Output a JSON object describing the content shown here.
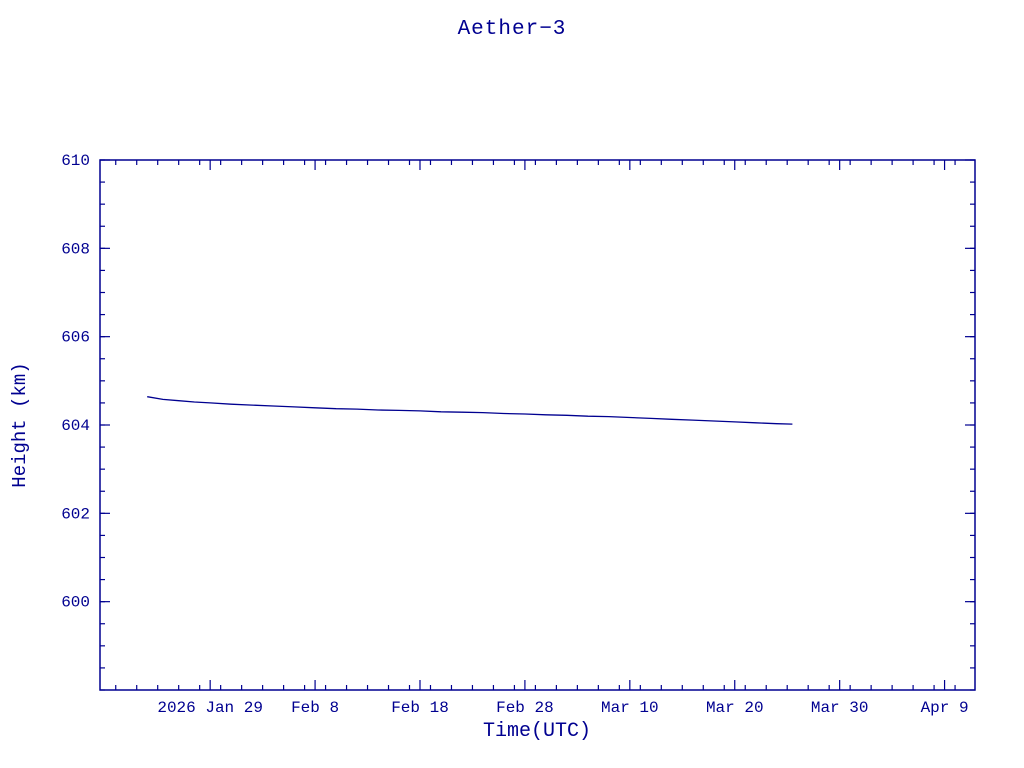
{
  "chart_data": {
    "type": "line",
    "title": "Aether−3",
    "xlabel": "Time(UTC)",
    "ylabel": "Height (km)",
    "line_color": "#000090",
    "axis_color": "#000090",
    "background": "#ffffff",
    "grid": false,
    "legend": null,
    "x_unit": "day_of_year_2026",
    "xlim": [
      18.5,
      101.9
    ],
    "ylim": [
      598,
      610
    ],
    "x_ticks": {
      "values": [
        29,
        39,
        49,
        59,
        69,
        79,
        89,
        99
      ],
      "labels": [
        "2026 Jan 29",
        "Feb 8",
        "Feb 18",
        "Feb 28",
        "Mar 10",
        "Mar 20",
        "Mar 30",
        "Apr 9"
      ]
    },
    "y_ticks": {
      "values": [
        600,
        602,
        604,
        606,
        608,
        610
      ],
      "labels": [
        "600",
        "602",
        "604",
        "606",
        "608",
        "610"
      ]
    },
    "x_minor_step": 2,
    "y_minor_step": 0.5,
    "series": [
      {
        "name": "height",
        "x": [
          23,
          24.5,
          26,
          27.5,
          29,
          31,
          33,
          35,
          37,
          39,
          41,
          43,
          45,
          47,
          49,
          51,
          53,
          55,
          57,
          59,
          61,
          63,
          65,
          67,
          69,
          71,
          73,
          75,
          77,
          79,
          81,
          83,
          84.5
        ],
        "y": [
          604.64,
          604.58,
          604.55,
          604.52,
          604.5,
          604.47,
          604.45,
          604.43,
          604.41,
          604.39,
          604.37,
          604.36,
          604.34,
          604.33,
          604.32,
          604.3,
          604.29,
          604.28,
          604.26,
          604.25,
          604.23,
          604.22,
          604.2,
          604.19,
          604.17,
          604.15,
          604.13,
          604.11,
          604.09,
          604.07,
          604.05,
          604.03,
          604.02
        ]
      }
    ]
  }
}
